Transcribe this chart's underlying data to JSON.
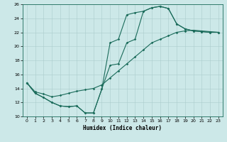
{
  "xlabel": "Humidex (Indice chaleur)",
  "background_color": "#cce8e8",
  "grid_color": "#aacccc",
  "line_color": "#1a6b5a",
  "xlim": [
    -0.5,
    23.5
  ],
  "ylim": [
    10,
    26
  ],
  "xticks": [
    0,
    1,
    2,
    3,
    4,
    5,
    6,
    7,
    8,
    9,
    10,
    11,
    12,
    13,
    14,
    15,
    16,
    17,
    18,
    19,
    20,
    21,
    22,
    23
  ],
  "yticks": [
    10,
    12,
    14,
    16,
    18,
    20,
    22,
    24,
    26
  ],
  "line1_x": [
    0,
    1,
    2,
    3,
    4,
    5,
    6,
    7,
    8,
    9,
    10,
    11,
    12,
    13,
    14,
    15,
    16,
    17,
    18,
    19,
    20,
    21,
    22,
    23
  ],
  "line1_y": [
    14.8,
    13.3,
    12.7,
    12.0,
    11.5,
    11.4,
    11.5,
    10.5,
    10.5,
    13.9,
    20.5,
    21.0,
    24.5,
    24.8,
    25.0,
    25.5,
    25.7,
    25.4,
    23.2,
    22.5,
    22.2,
    22.1,
    22.0,
    22.0
  ],
  "line2_x": [
    0,
    1,
    2,
    3,
    4,
    5,
    6,
    7,
    8,
    9,
    10,
    11,
    12,
    13,
    14,
    15,
    16,
    17,
    18,
    19,
    20,
    21,
    22,
    23
  ],
  "line2_y": [
    14.8,
    13.3,
    12.7,
    12.0,
    11.5,
    11.4,
    11.5,
    10.5,
    10.5,
    13.9,
    17.3,
    17.5,
    20.5,
    21.0,
    25.0,
    25.5,
    25.7,
    25.4,
    23.2,
    22.5,
    22.2,
    22.1,
    22.0,
    22.0
  ],
  "line3_x": [
    0,
    1,
    2,
    3,
    4,
    5,
    6,
    7,
    8,
    9,
    10,
    11,
    12,
    13,
    14,
    15,
    16,
    17,
    18,
    19,
    20,
    21,
    22,
    23
  ],
  "line3_y": [
    14.8,
    13.5,
    13.2,
    12.8,
    13.0,
    13.3,
    13.6,
    13.8,
    14.0,
    14.5,
    15.5,
    16.5,
    17.5,
    18.5,
    19.5,
    20.5,
    21.0,
    21.5,
    22.0,
    22.2,
    22.3,
    22.2,
    22.1,
    22.0
  ]
}
